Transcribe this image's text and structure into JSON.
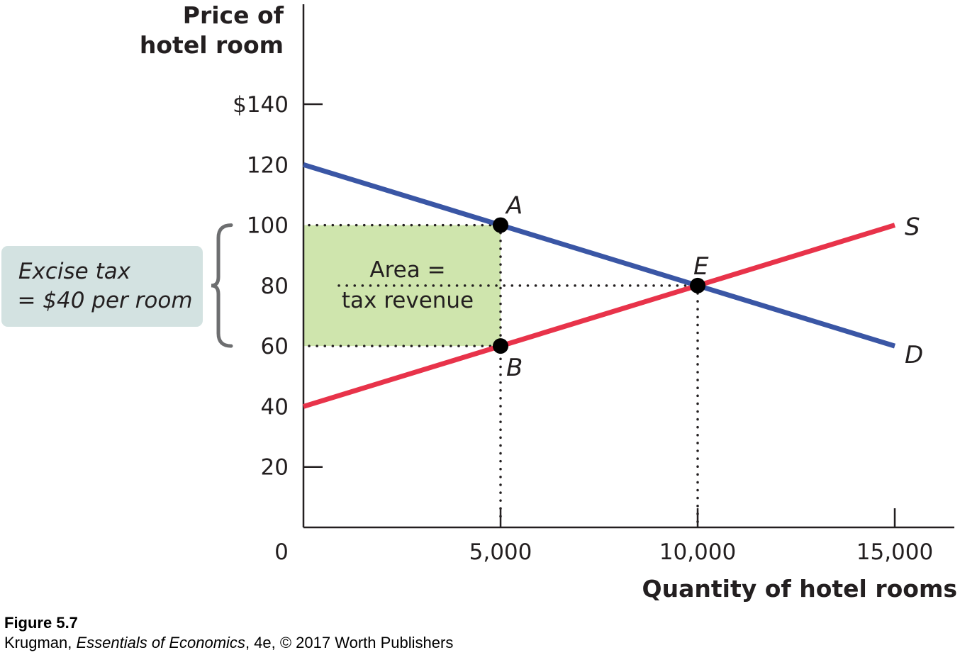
{
  "chart_data": {
    "type": "line",
    "ylabel_lines": [
      "Price of",
      "hotel room"
    ],
    "xlabel": "Quantity of hotel rooms",
    "xlim": [
      0,
      15000
    ],
    "ylim": [
      0,
      140
    ],
    "origin_label": "0",
    "x_ticks": [
      {
        "value": 5000,
        "label": "5,000"
      },
      {
        "value": 10000,
        "label": "10,000"
      },
      {
        "value": 15000,
        "label": "15,000"
      }
    ],
    "y_ticks": [
      {
        "value": 20,
        "label": "20"
      },
      {
        "value": 40,
        "label": "40"
      },
      {
        "value": 60,
        "label": "60"
      },
      {
        "value": 80,
        "label": "80"
      },
      {
        "value": 100,
        "label": "100"
      },
      {
        "value": 120,
        "label": "120"
      },
      {
        "value": 140,
        "label": "$140"
      }
    ],
    "series": [
      {
        "name": "D",
        "color": "#3a56a5",
        "points": [
          [
            0,
            120
          ],
          [
            15000,
            60
          ]
        ]
      },
      {
        "name": "S",
        "color": "#e8334a",
        "points": [
          [
            0,
            40
          ],
          [
            15000,
            100
          ]
        ]
      }
    ],
    "points": [
      {
        "label": "A",
        "x": 5000,
        "y": 100
      },
      {
        "label": "B",
        "x": 5000,
        "y": 60
      },
      {
        "label": "E",
        "x": 10000,
        "y": 80
      }
    ],
    "shaded_area": {
      "x": [
        0,
        5000
      ],
      "y": [
        60,
        100
      ],
      "color": "#cfe5ad",
      "label_lines": [
        "Area =",
        "tax revenue"
      ]
    },
    "bracket": {
      "y": [
        60,
        100
      ],
      "label_lines": [
        "Excise tax",
        "= $40 per room"
      ],
      "box_color": "#d3e2e1"
    }
  },
  "figure": {
    "label": "Figure 5.7",
    "source_prefix": "Krugman, ",
    "source_title": "Essentials of Economics",
    "source_suffix": ", 4e, © 2017 Worth Publishers"
  }
}
